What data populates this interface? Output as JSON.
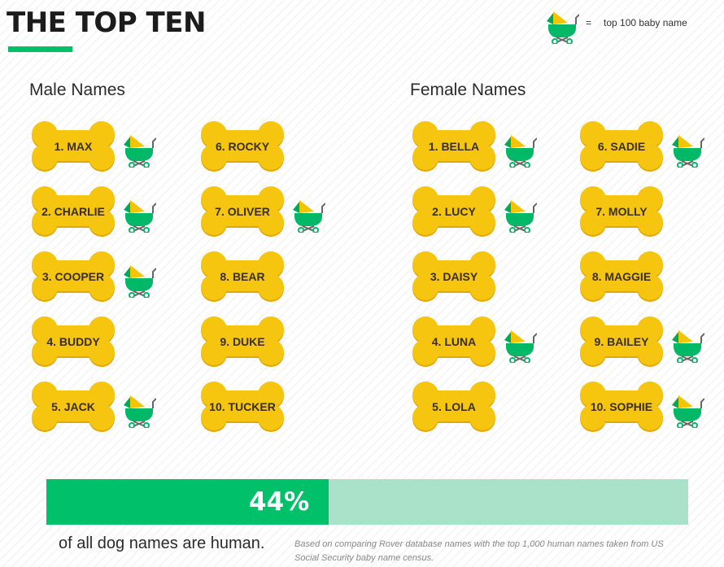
{
  "header": {
    "title": "THE TOP TEN"
  },
  "legend": {
    "icon": "baby-stroller-icon",
    "equals": "=",
    "label": "top 100 baby name"
  },
  "colors": {
    "accent_green": "#00c16a",
    "bar_track": "#a9e2c9",
    "bone_yellow": "#f6c510",
    "bone_shadow": "#e0a800",
    "stroller_green": "#00b866",
    "stroller_yellow": "#f2c500"
  },
  "male": {
    "heading": "Male Names",
    "names": [
      {
        "label": "1. MAX",
        "baby_name": true
      },
      {
        "label": "2. CHARLIE",
        "baby_name": true
      },
      {
        "label": "3. COOPER",
        "baby_name": true
      },
      {
        "label": "4. BUDDY",
        "baby_name": false
      },
      {
        "label": "5. JACK",
        "baby_name": true
      },
      {
        "label": "6. ROCKY",
        "baby_name": false
      },
      {
        "label": "7. OLIVER",
        "baby_name": true
      },
      {
        "label": "8. BEAR",
        "baby_name": false
      },
      {
        "label": "9. DUKE",
        "baby_name": false
      },
      {
        "label": "10. TUCKER",
        "baby_name": false
      }
    ]
  },
  "female": {
    "heading": "Female Names",
    "names": [
      {
        "label": "1. BELLA",
        "baby_name": true
      },
      {
        "label": "2. LUCY",
        "baby_name": true
      },
      {
        "label": "3. DAISY",
        "baby_name": false
      },
      {
        "label": "4. LUNA",
        "baby_name": true
      },
      {
        "label": "5. LOLA",
        "baby_name": false
      },
      {
        "label": "6. SADIE",
        "baby_name": true
      },
      {
        "label": "7. MOLLY",
        "baby_name": false
      },
      {
        "label": "8. MAGGIE",
        "baby_name": false
      },
      {
        "label": "9. BAILEY",
        "baby_name": true
      },
      {
        "label": "10. SOPHIE",
        "baby_name": true
      }
    ]
  },
  "stat": {
    "percent_label": "44%",
    "percent_value": 44,
    "tagline": "of all dog names are human.",
    "footnote": "Based on comparing Rover database names with the top 1,000 human names taken from US Social Security baby name census."
  }
}
